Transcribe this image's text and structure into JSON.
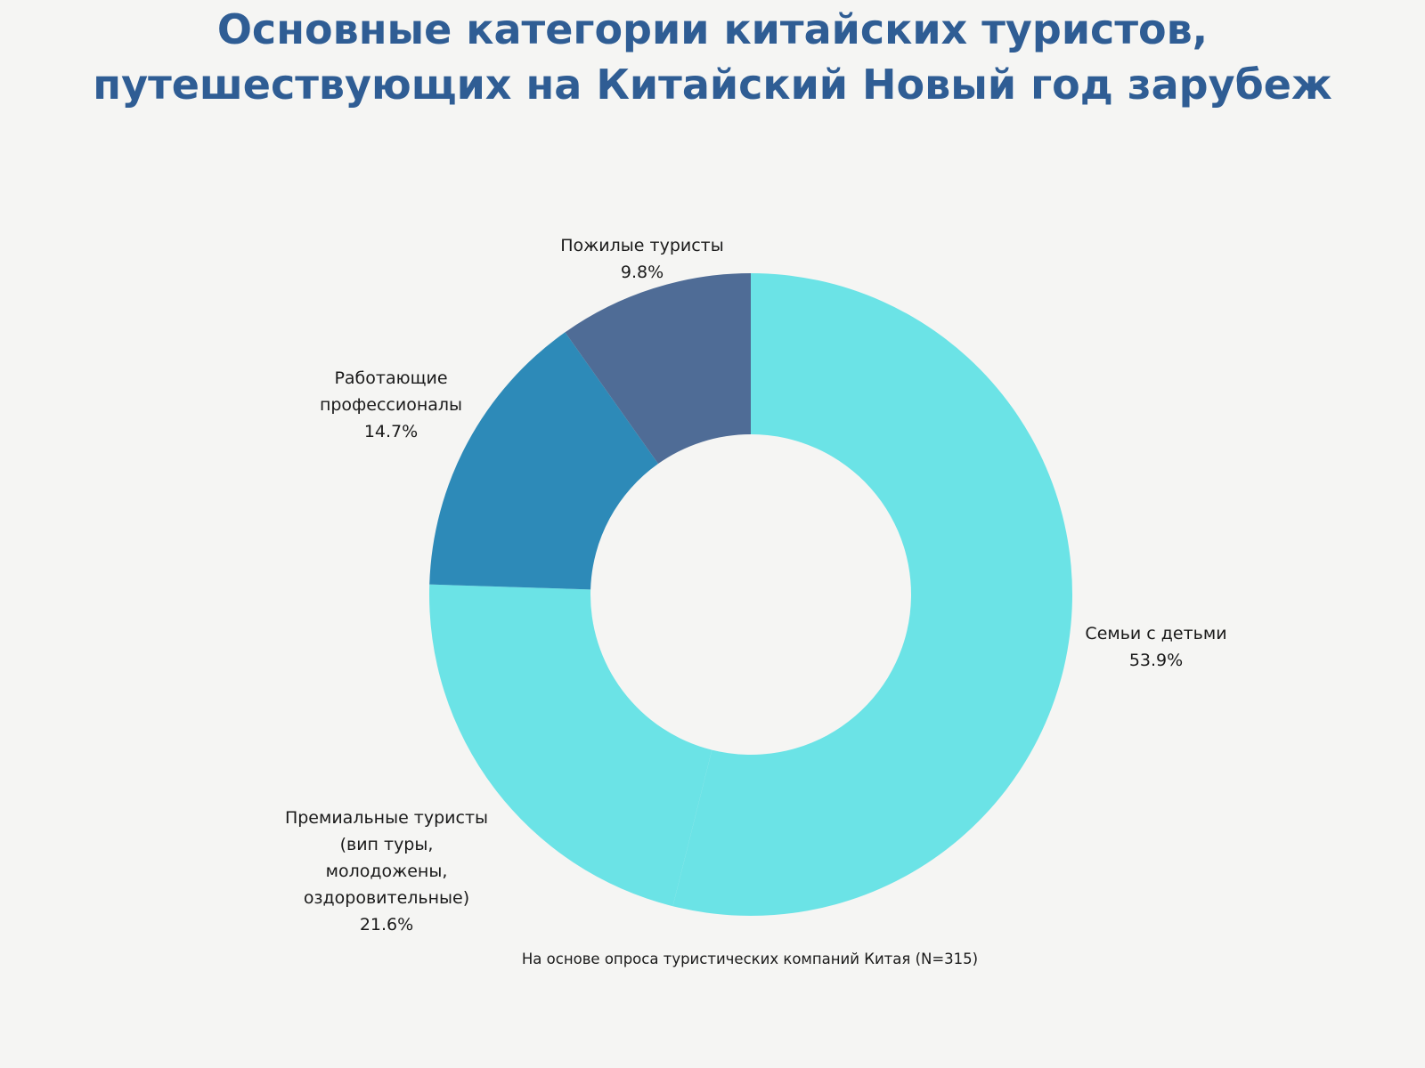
{
  "title_line1": "Основные категории китайских туристов,",
  "title_line2": "путешествующих на Китайский Новый год зарубеж",
  "source_note": "На основе опроса туристических компаний Китая (N=315)",
  "chart_data": {
    "type": "pie",
    "donut": true,
    "title": "Основные категории китайских туристов, путешествующих на Китайский Новый год зарубеж",
    "categories": [
      "Семьи с детьми",
      "Премиальные туристы (вип туры, молодожены, оздоровительные)",
      "Работающие профессионалы",
      "Пожилые туристы"
    ],
    "values": [
      53.9,
      21.6,
      14.7,
      9.8
    ],
    "value_labels": [
      "53.9%",
      "21.6%",
      "14.7%",
      "9.8%"
    ],
    "label_lines": [
      [
        "Семьи с детьми"
      ],
      [
        "Премиальные туристы",
        "(вип туры,",
        "молодожены,",
        "оздоровительные)"
      ],
      [
        "Работающие",
        "профессионалы"
      ],
      [
        "Пожилые туристы"
      ]
    ],
    "colors": [
      "#6be3e6",
      "#6be3e6",
      "#2d8ab8",
      "#4f6c96"
    ],
    "legend": "none",
    "start": "12 o'clock",
    "direction": "clockwise"
  }
}
